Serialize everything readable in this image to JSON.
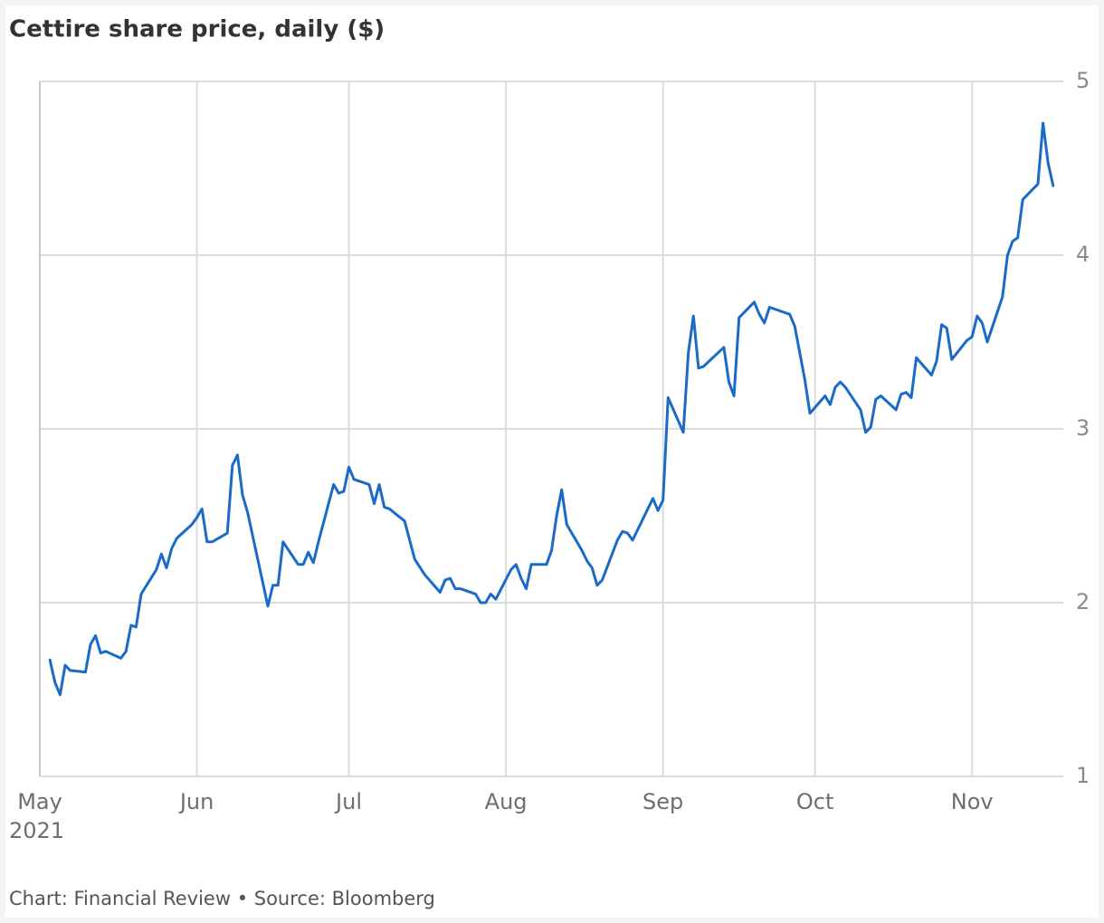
{
  "chart_data": {
    "type": "line",
    "title": "Cettire share price, daily ($)",
    "source": "Chart: Financial Review • Source: Bloomberg",
    "year_label": "2021",
    "x": [
      2,
      3,
      4,
      5,
      6,
      9,
      10,
      11,
      12,
      13,
      16,
      17,
      18,
      19,
      20,
      23,
      24,
      25,
      26,
      27,
      30,
      31,
      32,
      33,
      34,
      37,
      38,
      39,
      40,
      41,
      45,
      46,
      47,
      48,
      51,
      52,
      53,
      54,
      55,
      58,
      59,
      60,
      61,
      62,
      65,
      66,
      67,
      68,
      69,
      72,
      74,
      76,
      79,
      80,
      81,
      82,
      83,
      86,
      87,
      88,
      89,
      90,
      93,
      94,
      95,
      96,
      97,
      100,
      101,
      102,
      103,
      104,
      107,
      108,
      109,
      110,
      111,
      114,
      115,
      116,
      117,
      118,
      120,
      121,
      122,
      123,
      124,
      127,
      128,
      129,
      130,
      131,
      135,
      136,
      137,
      138,
      141,
      142,
      143,
      144,
      145,
      148,
      149,
      151,
      152,
      155,
      156,
      157,
      158,
      159,
      162,
      163,
      164,
      165,
      166,
      169,
      170,
      171,
      172,
      173,
      176,
      177,
      178,
      179,
      180,
      183,
      184,
      185,
      186,
      187,
      190,
      191,
      192,
      193,
      194,
      197,
      198,
      199,
      200
    ],
    "series": [
      {
        "name": "Cettire",
        "color": "#1a6ac8",
        "values": [
          1.67,
          1.54,
          1.47,
          1.64,
          1.61,
          1.6,
          1.76,
          1.81,
          1.71,
          1.72,
          1.68,
          1.72,
          1.87,
          1.86,
          2.05,
          2.19,
          2.28,
          2.2,
          2.31,
          2.37,
          2.45,
          2.49,
          2.54,
          2.35,
          2.35,
          2.4,
          2.79,
          2.85,
          2.62,
          2.52,
          1.98,
          2.1,
          2.1,
          2.35,
          2.22,
          2.22,
          2.29,
          2.23,
          2.35,
          2.68,
          2.63,
          2.64,
          2.78,
          2.71,
          2.68,
          2.57,
          2.68,
          2.55,
          2.54,
          2.47,
          2.25,
          2.16,
          2.06,
          2.13,
          2.14,
          2.08,
          2.08,
          2.05,
          2.0,
          2.0,
          2.05,
          2.02,
          2.19,
          2.22,
          2.14,
          2.08,
          2.22,
          2.22,
          2.3,
          2.5,
          2.65,
          2.45,
          2.3,
          2.24,
          2.2,
          2.1,
          2.13,
          2.36,
          2.41,
          2.4,
          2.36,
          2.42,
          2.54,
          2.6,
          2.53,
          2.59,
          3.18,
          2.98,
          3.44,
          3.65,
          3.35,
          3.36,
          3.47,
          3.27,
          3.19,
          3.64,
          3.73,
          3.66,
          3.61,
          3.7,
          3.69,
          3.66,
          3.59,
          3.28,
          3.09,
          3.19,
          3.14,
          3.24,
          3.27,
          3.24,
          3.11,
          2.98,
          3.01,
          3.17,
          3.19,
          3.11,
          3.2,
          3.21,
          3.18,
          3.41,
          3.31,
          3.39,
          3.6,
          3.58,
          3.4,
          3.51,
          3.53,
          3.65,
          3.61,
          3.5,
          3.76,
          4.0,
          4.08,
          4.1,
          4.32,
          4.41,
          4.76,
          4.53,
          4.4
        ]
      }
    ],
    "xlim": [
      0,
      202
    ],
    "xticks": [
      {
        "value": 0,
        "label": "May"
      },
      {
        "value": 31,
        "label": "Jun"
      },
      {
        "value": 61,
        "label": "Jul"
      },
      {
        "value": 92,
        "label": "Aug"
      },
      {
        "value": 123,
        "label": "Sep"
      },
      {
        "value": 153,
        "label": "Oct"
      },
      {
        "value": 184,
        "label": "Nov"
      }
    ],
    "ylim": [
      1,
      5
    ],
    "yticks": [
      1,
      2,
      3,
      4,
      5
    ],
    "grid": true
  }
}
